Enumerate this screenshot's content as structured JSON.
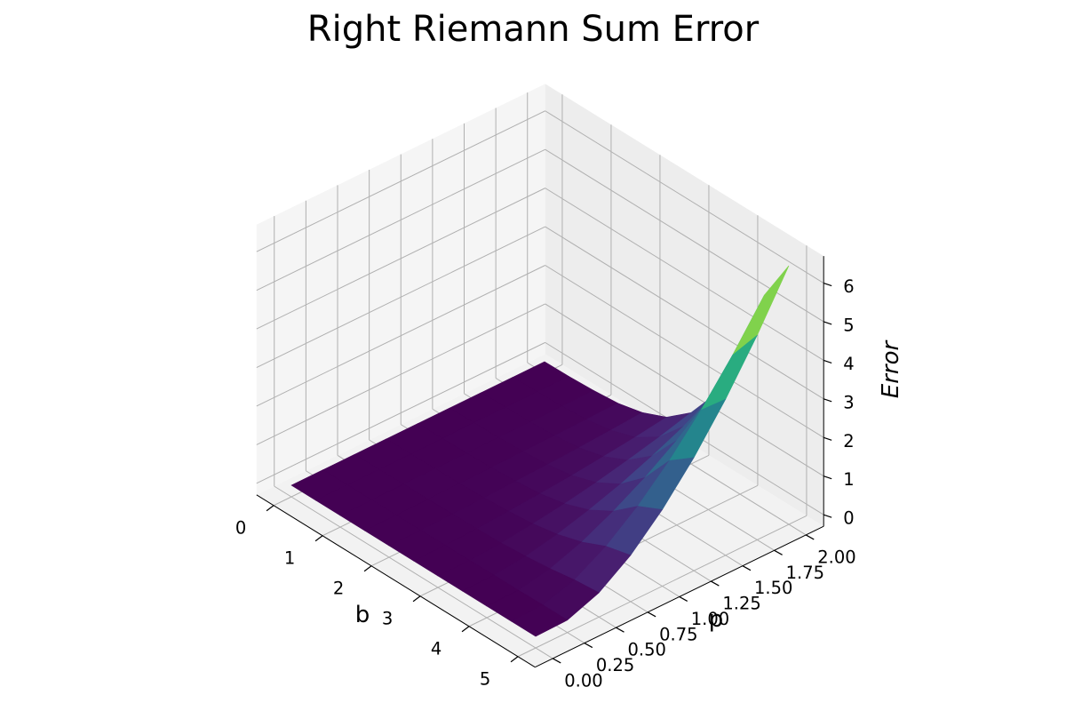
{
  "chart_data": {
    "type": "surface3d",
    "title": "Right Riemann Sum Error",
    "xlabel": "b",
    "ylabel": "p",
    "zlabel": "Error",
    "x_ticks": [
      "0",
      "1",
      "2",
      "3",
      "4",
      "5"
    ],
    "y_ticks": [
      "0.00",
      "0.25",
      "0.50",
      "0.75",
      "1.00",
      "1.25",
      "1.50",
      "1.75",
      "2.00"
    ],
    "z_ticks": [
      "0",
      "1",
      "2",
      "3",
      "4",
      "5",
      "6"
    ],
    "xlim": [
      0,
      5
    ],
    "ylim": [
      0,
      2
    ],
    "zlim": [
      0,
      6.4
    ],
    "colormap": "viridis",
    "grid": true,
    "b": [
      0,
      0.5,
      1,
      1.5,
      2,
      2.5,
      3,
      3.5,
      4,
      4.5,
      5
    ],
    "p": [
      0,
      0.25,
      0.5,
      0.75,
      1,
      1.25,
      1.5,
      1.75,
      2
    ],
    "error": [
      [
        0,
        0,
        0,
        0,
        0,
        0,
        0,
        0,
        0
      ],
      [
        0,
        0,
        0,
        0,
        0,
        0.01,
        0.01,
        0.01,
        0.01
      ],
      [
        0,
        0,
        0.01,
        0.01,
        0.01,
        0.02,
        0.02,
        0.03,
        0.04
      ],
      [
        0,
        0,
        0.01,
        0.02,
        0.03,
        0.05,
        0.06,
        0.08,
        0.1
      ],
      [
        0,
        0,
        0.02,
        0.04,
        0.07,
        0.1,
        0.14,
        0.19,
        0.25
      ],
      [
        0,
        0,
        0.03,
        0.08,
        0.14,
        0.21,
        0.3,
        0.4,
        0.52
      ],
      [
        0,
        0,
        0.05,
        0.15,
        0.27,
        0.42,
        0.6,
        0.8,
        1.03
      ],
      [
        0,
        0.01,
        0.1,
        0.27,
        0.5,
        0.77,
        1.1,
        1.47,
        1.9
      ],
      [
        0,
        0.01,
        0.17,
        0.46,
        0.86,
        1.33,
        1.89,
        2.53,
        3.25
      ],
      [
        0,
        0.02,
        0.27,
        0.74,
        1.38,
        2.16,
        3.07,
        4.1,
        5.25
      ],
      [
        0,
        0.02,
        0.33,
        0.9,
        1.68,
        2.63,
        3.74,
        5.0,
        6.4
      ]
    ]
  }
}
